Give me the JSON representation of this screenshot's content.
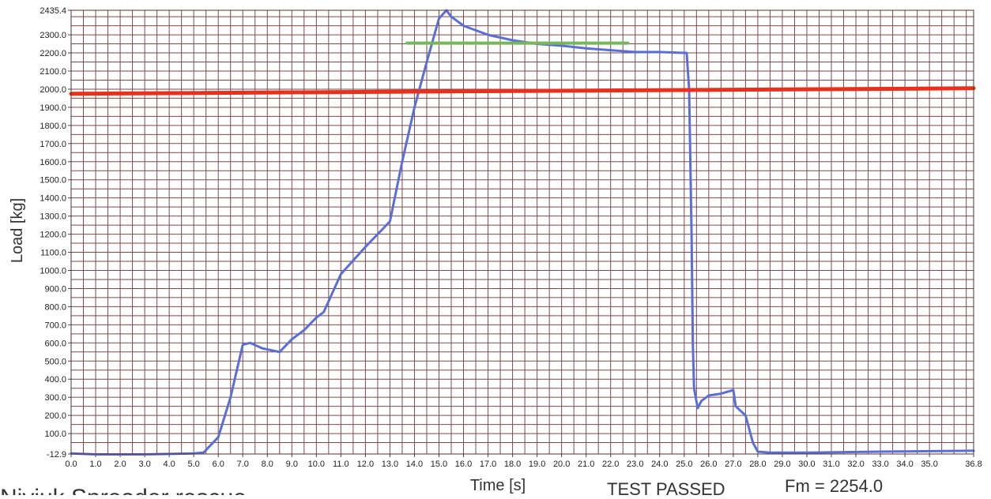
{
  "chart_data": {
    "type": "line",
    "title": "",
    "xlabel": "Time [s]",
    "ylabel": "Load [kg]",
    "xlim": [
      0,
      36.8
    ],
    "ylim": [
      -12.9,
      2435.4
    ],
    "grid": true,
    "x_ticks": [
      0.0,
      1.0,
      2.0,
      3.0,
      4.0,
      5.0,
      6.0,
      7.0,
      8.0,
      9.0,
      10.0,
      11.0,
      12.0,
      13.0,
      14.0,
      15.0,
      16.0,
      17.0,
      18.0,
      19.0,
      20.0,
      21.0,
      22.0,
      23.0,
      24.0,
      25.0,
      26.0,
      27.0,
      28.0,
      29.0,
      30.0,
      31.0,
      32.0,
      33.0,
      34.0,
      35.0,
      36.8
    ],
    "x_tick_labels": [
      "0.0",
      "1.0",
      "2.0",
      "3.0",
      "4.0",
      "5.0",
      "6.0",
      "7.0",
      "8.0",
      "9.0",
      "10.0",
      "11.0",
      "12.0",
      "13.0",
      "14.0",
      "15.0",
      "16.0",
      "17.0",
      "18.0",
      "19.0",
      "20.0",
      "21.0",
      "22.0",
      "23.0",
      "24.0",
      "25.0",
      "26.0",
      "27.0",
      "28.0",
      "29.0",
      "30.0",
      "31.0",
      "32.0",
      "33.0",
      "34.0",
      "35.0",
      "36.8"
    ],
    "y_ticks": [
      -12.9,
      100,
      200,
      300,
      400,
      500,
      600,
      700,
      800,
      900,
      1000,
      1100,
      1200,
      1300,
      1400,
      1500,
      1600,
      1700,
      1800,
      1900,
      2000,
      2100,
      2200,
      2300,
      2435.4
    ],
    "y_tick_labels": [
      "-12.9",
      "100.0",
      "200.0",
      "300.0",
      "400.0",
      "500.0",
      "600.0",
      "700.0",
      "800.0",
      "900.0",
      "1000.0",
      "1100.0",
      "1200.0",
      "1300.0",
      "1400.0",
      "1500.0",
      "1600.0",
      "1700.0",
      "1800.0",
      "1900.0",
      "2000.0",
      "2100.0",
      "2200.0",
      "2300.0",
      "2435.4"
    ],
    "series": [
      {
        "color": "#5a6fd6",
        "x": [
          0.0,
          1.0,
          3.0,
          5.0,
          5.4,
          6.0,
          6.5,
          7.0,
          7.3,
          7.8,
          8.5,
          9.0,
          9.5,
          10.0,
          10.3,
          11.0,
          12.0,
          13.0,
          13.5,
          14.0,
          14.5,
          15.0,
          15.3,
          15.5,
          16.0,
          17.0,
          18.0,
          19.0,
          20.0,
          21.0,
          22.0,
          23.0,
          24.0,
          25.0,
          25.1,
          25.2,
          25.3,
          25.35,
          25.4,
          25.55,
          25.7,
          26.0,
          26.5,
          27.0,
          27.1,
          27.5,
          27.8,
          28.0,
          28.5,
          30.0,
          33.0,
          36.8
        ],
        "y": [
          -10,
          -15,
          -15,
          -10,
          -5,
          80,
          300,
          590,
          600,
          570,
          550,
          620,
          670,
          740,
          770,
          980,
          1130,
          1270,
          1600,
          1900,
          2150,
          2390,
          2435,
          2400,
          2350,
          2300,
          2270,
          2250,
          2240,
          2225,
          2215,
          2205,
          2205,
          2200,
          2200,
          2000,
          1200,
          600,
          350,
          240,
          280,
          310,
          320,
          340,
          250,
          200,
          50,
          0,
          -5,
          -5,
          0,
          5
        ]
      },
      {
        "color": "#e8311c",
        "x": [
          0.0,
          36.8
        ],
        "y": [
          1975,
          2005
        ]
      },
      {
        "color": "#77b65e",
        "x": [
          13.7,
          22.7
        ],
        "y": [
          2254,
          2254
        ]
      }
    ]
  },
  "footer": {
    "status": "TEST PASSED",
    "fm": "Fm = 2254.0"
  },
  "caption": "Niviuk Spreader rescue"
}
